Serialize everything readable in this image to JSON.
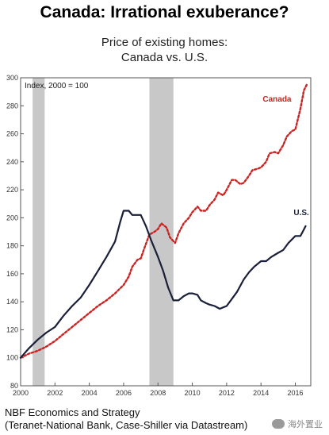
{
  "title": "Canada: Irrational exuberance?",
  "subtitle_line1": "Price of existing homes:",
  "subtitle_line2": "Canada vs. U.S.",
  "source_line1": "NBF Economics and Strategy",
  "source_line2": "(Teranet-National Bank, Case-Shiller via Datastream)",
  "watermark": "海外置业",
  "chart_data": {
    "type": "line",
    "annotation": "Index, 2000 = 100",
    "xlim": [
      2000,
      2016.9
    ],
    "ylim": [
      80,
      300
    ],
    "x_ticks": [
      2000,
      2002,
      2004,
      2006,
      2008,
      2010,
      2012,
      2014,
      2016
    ],
    "y_ticks": [
      80,
      100,
      120,
      140,
      160,
      180,
      200,
      220,
      240,
      260,
      280,
      300
    ],
    "grid": false,
    "recession_bands": [
      [
        2000.7,
        2001.4
      ],
      [
        2007.5,
        2008.9
      ]
    ],
    "colors": {
      "canada": "#cc2222",
      "us": "#1a1f3a",
      "band": "#c8c8c8",
      "axis": "#555555"
    },
    "series": [
      {
        "name": "Canada",
        "style": "dotted",
        "color": "#cc2222",
        "x": [
          2000,
          2000.5,
          2001,
          2001.5,
          2002,
          2002.5,
          2003,
          2003.5,
          2004,
          2004.5,
          2005,
          2005.5,
          2006,
          2006.3,
          2006.5,
          2006.8,
          2007,
          2007.2,
          2007.5,
          2007.8,
          2008,
          2008.2,
          2008.5,
          2008.7,
          2009,
          2009.2,
          2009.5,
          2009.8,
          2010,
          2010.3,
          2010.5,
          2010.8,
          2011,
          2011.3,
          2011.5,
          2011.8,
          2012,
          2012.3,
          2012.5,
          2012.8,
          2013,
          2013.3,
          2013.5,
          2013.8,
          2014,
          2014.3,
          2014.5,
          2014.8,
          2015,
          2015.3,
          2015.5,
          2015.8,
          2016,
          2016.3,
          2016.5,
          2016.7
        ],
        "values": [
          100,
          103,
          105,
          108,
          112,
          117,
          122,
          127,
          132,
          137,
          141,
          146,
          152,
          158,
          165,
          170,
          171,
          178,
          188,
          190,
          192,
          196,
          193,
          186,
          182,
          189,
          196,
          200,
          204,
          208,
          205,
          205,
          209,
          213,
          218,
          216,
          220,
          227,
          227,
          224,
          225,
          230,
          234,
          235,
          236,
          240,
          246,
          247,
          246,
          252,
          258,
          262,
          263,
          278,
          291,
          296
        ]
      },
      {
        "name": "U.S.",
        "style": "solid",
        "color": "#1a1f3a",
        "x": [
          2000,
          2000.5,
          2001,
          2001.5,
          2002,
          2002.5,
          2003,
          2003.5,
          2004,
          2004.5,
          2005,
          2005.5,
          2005.8,
          2006,
          2006.3,
          2006.5,
          2006.8,
          2007,
          2007.3,
          2007.6,
          2008,
          2008.3,
          2008.6,
          2008.9,
          2009.2,
          2009.5,
          2009.8,
          2010,
          2010.3,
          2010.5,
          2010.8,
          2011,
          2011.3,
          2011.6,
          2011.8,
          2012,
          2012.3,
          2012.6,
          2013,
          2013.3,
          2013.6,
          2014,
          2014.3,
          2014.6,
          2015,
          2015.3,
          2015.6,
          2016,
          2016.3,
          2016.6
        ],
        "values": [
          100,
          107,
          113,
          118,
          122,
          130,
          137,
          143,
          152,
          162,
          172,
          183,
          197,
          205,
          205,
          202,
          202,
          202,
          194,
          184,
          172,
          162,
          150,
          141,
          141,
          144,
          146,
          146,
          145,
          141,
          139,
          138,
          137,
          135,
          136,
          137,
          142,
          147,
          156,
          161,
          165,
          169,
          169,
          172,
          175,
          177,
          182,
          187,
          187,
          194
        ]
      }
    ]
  }
}
